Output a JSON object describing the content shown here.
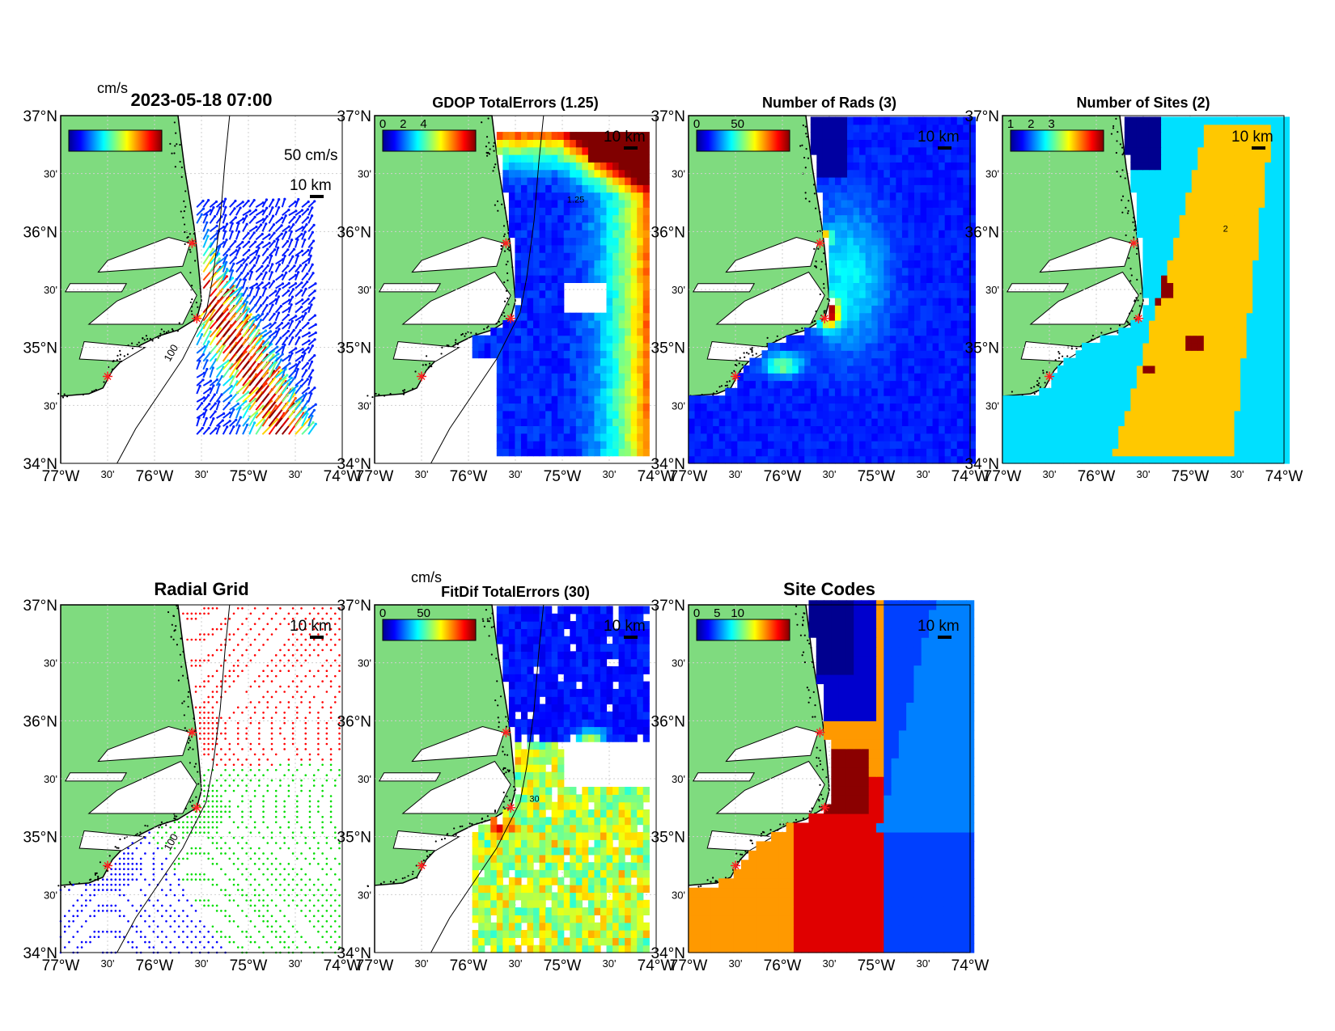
{
  "figure": {
    "panels": [
      {
        "id": "currents",
        "title": "2023-05-18 07:00",
        "colorbar": {
          "unit": "cm/s",
          "ticks": []
        },
        "vector_label": "50 cm/s",
        "scale_label": "10 km",
        "kind": "currents"
      },
      {
        "id": "gdop",
        "title": "GDOP TotalErrors (1.25)",
        "colorbar": {
          "unit": "",
          "ticks": [
            "0",
            "2",
            "4"
          ]
        },
        "scale_label": "10 km",
        "kind": "gdop",
        "contour_label": "1.25"
      },
      {
        "id": "nrads",
        "title": "Number of Rads (3)",
        "colorbar": {
          "unit": "",
          "ticks": [
            "0",
            "50"
          ]
        },
        "scale_label": "10 km",
        "kind": "nrads"
      },
      {
        "id": "nsites",
        "title": "Number of Sites (2)",
        "colorbar": {
          "unit": "",
          "ticks": [
            "1",
            "2",
            "3"
          ]
        },
        "scale_label": "10 km",
        "kind": "nsites",
        "contour_label": "2"
      },
      {
        "id": "radial",
        "title": "Radial Grid",
        "colorbar": null,
        "scale_label": "10 km",
        "kind": "radial"
      },
      {
        "id": "fitdif",
        "title": "FitDif TotalErrors (30)",
        "colorbar": {
          "unit": "cm/s",
          "ticks": [
            "0",
            "50"
          ]
        },
        "scale_label": "10 km",
        "kind": "fitdif",
        "contour_label": "30"
      },
      {
        "id": "sitecodes",
        "title": "Site Codes",
        "colorbar": {
          "unit": "",
          "ticks": [
            "0",
            "5",
            "10"
          ]
        },
        "scale_label": "10 km",
        "kind": "sitecodes"
      }
    ],
    "axes": {
      "lat_ticks": [
        "37°N",
        "30'",
        "36°N",
        "30'",
        "35°N",
        "30'",
        "34°N"
      ],
      "lon_ticks": [
        "77°W",
        "30'",
        "76°W",
        "30'",
        "75°W",
        "30'",
        "74°W"
      ],
      "lat_range": [
        34,
        37
      ],
      "lon_range": [
        -77,
        -74
      ]
    },
    "isobath_label": "100",
    "colors": {
      "land": "#7fdb7f",
      "site_marker": "#ff2020",
      "radial_site1": "#ff0000",
      "radial_site2": "#00dd00",
      "radial_site3": "#0000ff",
      "colormap": [
        "#00008f",
        "#0000ff",
        "#0080ff",
        "#00ffff",
        "#80ff80",
        "#ffff00",
        "#ff8000",
        "#ff0000",
        "#800000"
      ]
    },
    "site_locations": [
      [
        -75.6,
        35.9
      ],
      [
        -75.55,
        35.25
      ],
      [
        -76.5,
        34.75
      ]
    ]
  }
}
